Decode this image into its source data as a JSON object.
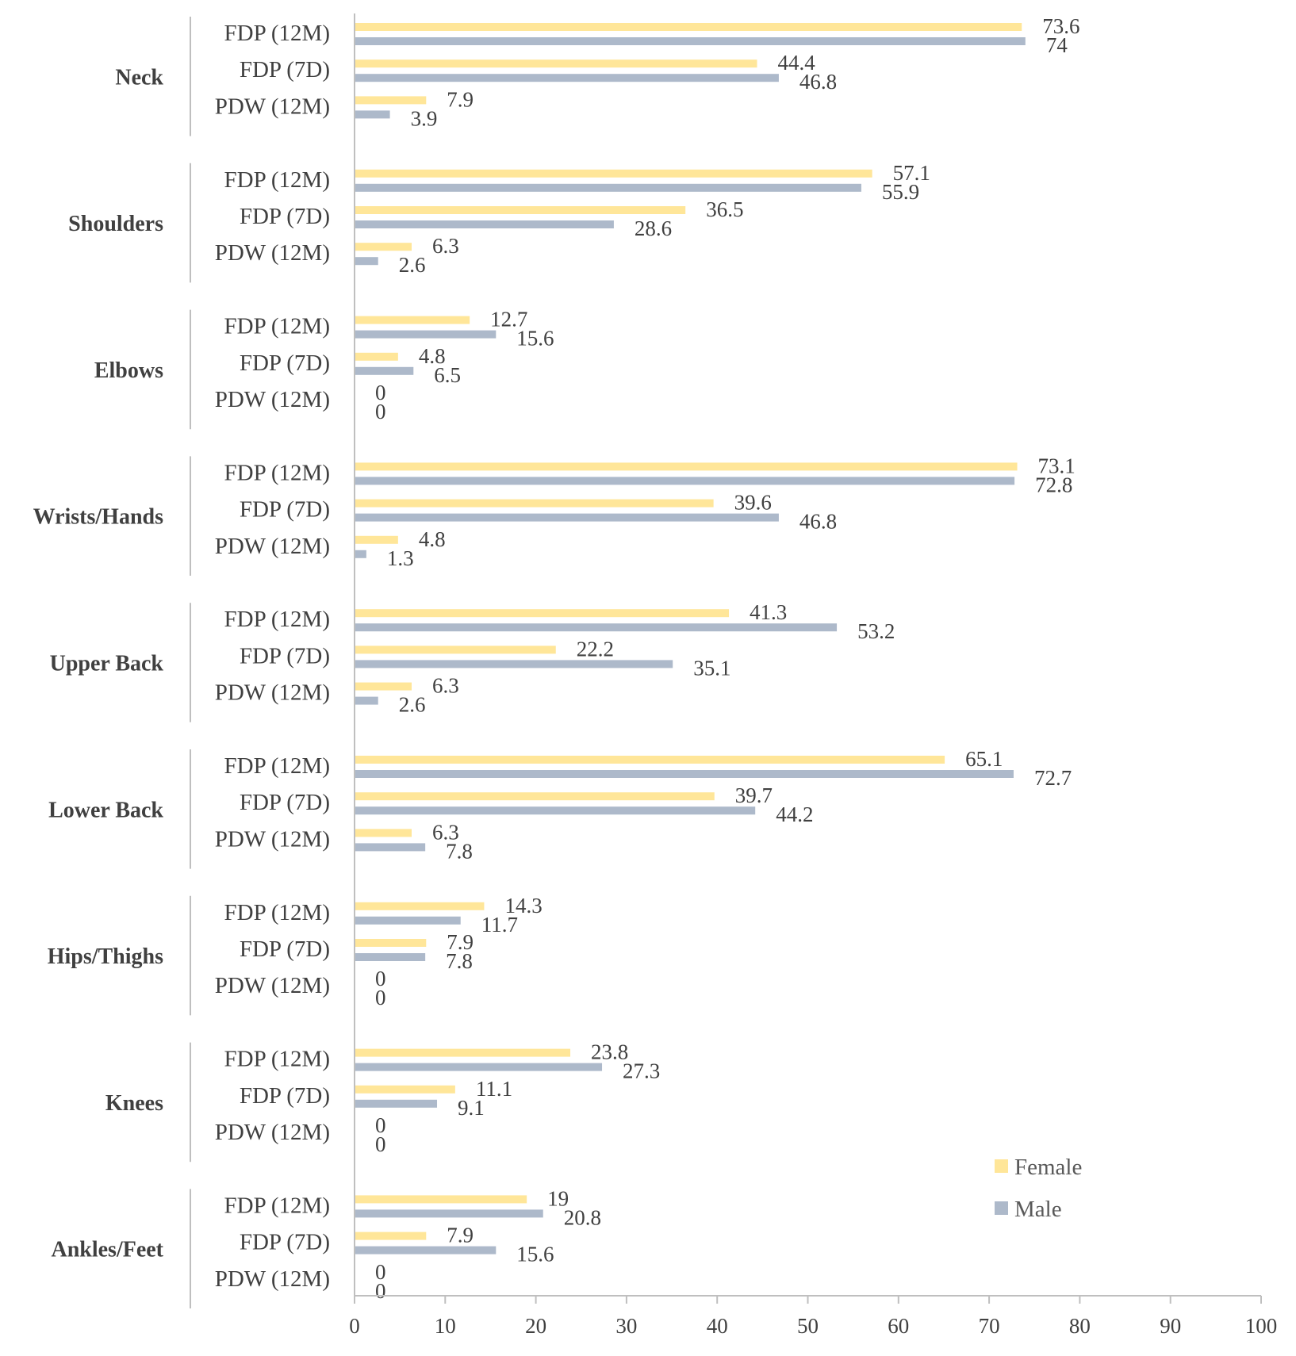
{
  "chart_data": {
    "type": "bar",
    "orientation": "horizontal",
    "title": "",
    "xlabel": "",
    "ylabel": "",
    "xlim": [
      0,
      100
    ],
    "x_ticks": [
      0,
      10,
      20,
      30,
      40,
      50,
      60,
      70,
      80,
      90,
      100
    ],
    "grid": false,
    "legend_position": "bottom-right",
    "subcategories": [
      "FDP (12M)",
      "FDP (7D)",
      "PDW (12M)"
    ],
    "series": [
      {
        "name": "Female",
        "color": "#FFE699"
      },
      {
        "name": "Male",
        "color": "#ADB9CA"
      }
    ],
    "groups": [
      {
        "name": "Neck",
        "female": [
          73.6,
          44.4,
          7.9
        ],
        "male": [
          74,
          46.8,
          3.9
        ]
      },
      {
        "name": "Shoulders",
        "female": [
          57.1,
          36.5,
          6.3
        ],
        "male": [
          55.9,
          28.6,
          2.6
        ]
      },
      {
        "name": "Elbows",
        "female": [
          12.7,
          4.8,
          0
        ],
        "male": [
          15.6,
          6.5,
          0
        ]
      },
      {
        "name": "Wrists/Hands",
        "female": [
          73.1,
          39.6,
          4.8
        ],
        "male": [
          72.8,
          46.8,
          1.3
        ]
      },
      {
        "name": "Upper Back",
        "female": [
          41.3,
          22.2,
          6.3
        ],
        "male": [
          53.2,
          35.1,
          2.6
        ]
      },
      {
        "name": "Lower Back",
        "female": [
          65.1,
          39.7,
          6.3
        ],
        "male": [
          72.7,
          44.2,
          7.8
        ]
      },
      {
        "name": "Hips/Thighs",
        "female": [
          14.3,
          7.9,
          0
        ],
        "male": [
          11.7,
          7.8,
          0
        ]
      },
      {
        "name": "Knees",
        "female": [
          23.8,
          11.1,
          0
        ],
        "male": [
          27.3,
          9.1,
          0
        ]
      },
      {
        "name": "Ankles/Feet",
        "female": [
          19,
          7.9,
          0
        ],
        "male": [
          20.8,
          15.6,
          0
        ]
      }
    ]
  }
}
